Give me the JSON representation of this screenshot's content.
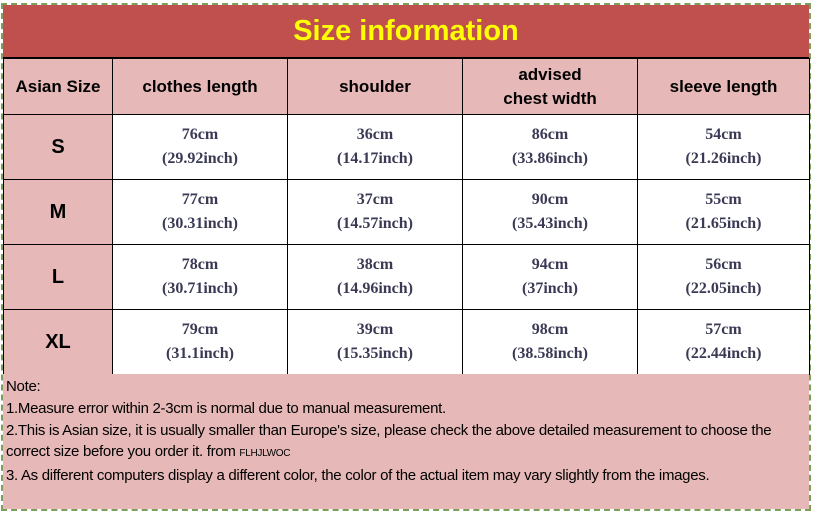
{
  "title": "Size information",
  "headers": [
    "Asian Size",
    "clothes length",
    "shoulder",
    "advised chest width",
    "sleeve length"
  ],
  "rows": [
    {
      "size": "S",
      "cells": [
        [
          "76cm",
          "(29.92inch)"
        ],
        [
          "36cm",
          "(14.17inch)"
        ],
        [
          "86cm",
          "(33.86inch)"
        ],
        [
          "54cm",
          "(21.26inch)"
        ]
      ]
    },
    {
      "size": "M",
      "cells": [
        [
          "77cm",
          "(30.31inch)"
        ],
        [
          "37cm",
          "(14.57inch)"
        ],
        [
          "90cm",
          "(35.43inch)"
        ],
        [
          "55cm",
          "(21.65inch)"
        ]
      ]
    },
    {
      "size": "L",
      "cells": [
        [
          "78cm",
          "(30.71inch)"
        ],
        [
          "38cm",
          "(14.96inch)"
        ],
        [
          "94cm",
          "(37inch)"
        ],
        [
          "56cm",
          "(22.05inch)"
        ]
      ]
    },
    {
      "size": "XL",
      "cells": [
        [
          "79cm",
          "(31.1inch)"
        ],
        [
          "39cm",
          "(15.35inch)"
        ],
        [
          "98cm",
          "(38.58inch)"
        ],
        [
          "57cm",
          "(22.44inch)"
        ]
      ]
    }
  ],
  "note": {
    "heading": "Note:",
    "line1": "1.Measure error within 2-3cm is normal due to manual measurement.",
    "line2": "2.This is Asian size, it is usually smaller than Europe's size, please check the above detailed measurement to choose the correct size before you order it. from ",
    "brand": "FLHJLWOC",
    "line3": "3. As different computers display a different color, the color of the actual item may vary slightly from the images."
  },
  "colors": {
    "title_bg": "#C0504D",
    "title_text": "#FFFF00",
    "header_bg": "#E6B8B7"
  }
}
